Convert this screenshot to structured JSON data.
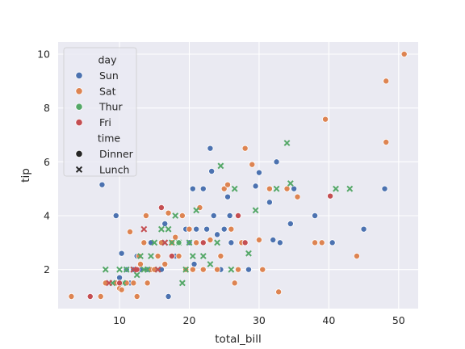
{
  "chart_data": {
    "type": "scatter",
    "xlabel": "total_bill",
    "ylabel": "tip",
    "xlim": [
      1.2,
      52.8
    ],
    "ylim": [
      0.55,
      10.45
    ],
    "xticks": [
      10,
      20,
      30,
      40,
      50
    ],
    "yticks": [
      2,
      4,
      6,
      8,
      10
    ],
    "grid": true,
    "legend_placement": "upper-left",
    "legend": {
      "hue_title": "day",
      "hue_entries": [
        {
          "name": "Sun",
          "color": "#4c72b0"
        },
        {
          "name": "Sat",
          "color": "#dd8452"
        },
        {
          "name": "Thur",
          "color": "#55a868"
        },
        {
          "name": "Fri",
          "color": "#c44e52"
        }
      ],
      "style_title": "time",
      "style_entries": [
        {
          "name": "Dinner",
          "marker": "circle"
        },
        {
          "name": "Lunch",
          "marker": "x"
        }
      ]
    },
    "series": [
      {
        "name": "Sun",
        "time": "Dinner",
        "color": "#4c72b0",
        "marker": "circle",
        "points": [
          [
            7.5,
            5.15
          ],
          [
            9.5,
            4.0
          ],
          [
            10.0,
            1.7
          ],
          [
            10.3,
            2.6
          ],
          [
            11.0,
            2.0
          ],
          [
            11.5,
            1.5
          ],
          [
            12.0,
            2.0
          ],
          [
            12.5,
            2.5
          ],
          [
            13.0,
            2.0
          ],
          [
            14.0,
            2.0
          ],
          [
            14.5,
            3.0
          ],
          [
            15.0,
            2.0
          ],
          [
            15.5,
            2.5
          ],
          [
            16.0,
            2.0
          ],
          [
            16.5,
            3.7
          ],
          [
            17.0,
            1.0
          ],
          [
            17.5,
            2.5
          ],
          [
            18.0,
            2.5
          ],
          [
            18.5,
            3.0
          ],
          [
            19.5,
            3.5
          ],
          [
            20.0,
            3.0
          ],
          [
            20.5,
            5.0
          ],
          [
            20.7,
            2.2
          ],
          [
            21.0,
            3.5
          ],
          [
            22.0,
            5.0
          ],
          [
            22.5,
            3.5
          ],
          [
            23.0,
            6.5
          ],
          [
            23.2,
            5.65
          ],
          [
            23.5,
            4.0
          ],
          [
            24.0,
            3.3
          ],
          [
            24.5,
            2.0
          ],
          [
            25.0,
            3.5
          ],
          [
            25.5,
            4.7
          ],
          [
            25.8,
            4.0
          ],
          [
            26.0,
            3.0
          ],
          [
            28.5,
            2.0
          ],
          [
            29.5,
            5.1
          ],
          [
            30.0,
            5.6
          ],
          [
            30.5,
            2.0
          ],
          [
            31.5,
            4.5
          ],
          [
            32.0,
            3.1
          ],
          [
            32.5,
            6.0
          ],
          [
            33.0,
            3.0
          ],
          [
            34.5,
            3.7
          ],
          [
            35.0,
            5.0
          ],
          [
            38.0,
            4.0
          ],
          [
            40.5,
            3.0
          ],
          [
            45.0,
            3.5
          ],
          [
            48.0,
            5.0
          ]
        ]
      },
      {
        "name": "Sat",
        "time": "Dinner",
        "color": "#dd8452",
        "marker": "circle",
        "points": [
          [
            3.1,
            1.0
          ],
          [
            7.3,
            1.0
          ],
          [
            8.0,
            1.5
          ],
          [
            9.5,
            1.5
          ],
          [
            10.0,
            1.3
          ],
          [
            10.3,
            1.25
          ],
          [
            11.0,
            1.5
          ],
          [
            11.5,
            3.4
          ],
          [
            12.0,
            1.5
          ],
          [
            12.5,
            1.0
          ],
          [
            12.8,
            2.5
          ],
          [
            13.0,
            2.2
          ],
          [
            13.5,
            3.0
          ],
          [
            13.8,
            4.0
          ],
          [
            14.0,
            1.5
          ],
          [
            14.5,
            2.0
          ],
          [
            15.0,
            2.0
          ],
          [
            15.5,
            2.5
          ],
          [
            16.0,
            3.0
          ],
          [
            16.5,
            2.2
          ],
          [
            17.0,
            4.1
          ],
          [
            17.5,
            3.0
          ],
          [
            18.0,
            3.2
          ],
          [
            18.5,
            2.5
          ],
          [
            19.0,
            4.0
          ],
          [
            19.5,
            2.0
          ],
          [
            20.0,
            3.5
          ],
          [
            20.5,
            2.0
          ],
          [
            21.0,
            3.0
          ],
          [
            21.5,
            4.3
          ],
          [
            22.0,
            2.0
          ],
          [
            23.0,
            3.1
          ],
          [
            24.0,
            2.0
          ],
          [
            24.5,
            2.5
          ],
          [
            25.0,
            5.0
          ],
          [
            25.5,
            5.15
          ],
          [
            26.0,
            3.5
          ],
          [
            26.5,
            1.5
          ],
          [
            27.0,
            2.0
          ],
          [
            27.5,
            3.0
          ],
          [
            28.0,
            6.5
          ],
          [
            29.0,
            5.9
          ],
          [
            30.0,
            3.1
          ],
          [
            30.5,
            2.0
          ],
          [
            31.5,
            5.0
          ],
          [
            32.8,
            1.17
          ],
          [
            34.0,
            5.0
          ],
          [
            35.5,
            4.7
          ],
          [
            38.0,
            3.0
          ],
          [
            39.0,
            3.0
          ],
          [
            39.5,
            7.58
          ],
          [
            44.0,
            2.5
          ],
          [
            48.2,
            6.73
          ],
          [
            48.2,
            9.0
          ],
          [
            50.8,
            10.0
          ]
        ]
      },
      {
        "name": "Thur",
        "time": "Lunch",
        "color": "#55a868",
        "marker": "x",
        "points": [
          [
            8.0,
            2.0
          ],
          [
            9.0,
            1.5
          ],
          [
            10.0,
            2.0
          ],
          [
            10.5,
            1.5
          ],
          [
            11.0,
            2.0
          ],
          [
            12.0,
            2.0
          ],
          [
            12.5,
            1.8
          ],
          [
            13.0,
            2.5
          ],
          [
            13.5,
            2.0
          ],
          [
            14.0,
            2.0
          ],
          [
            14.5,
            2.5
          ],
          [
            15.0,
            3.0
          ],
          [
            15.5,
            2.0
          ],
          [
            16.0,
            3.5
          ],
          [
            16.5,
            3.0
          ],
          [
            17.0,
            3.5
          ],
          [
            17.5,
            3.0
          ],
          [
            18.0,
            4.0
          ],
          [
            18.5,
            3.0
          ],
          [
            19.0,
            1.5
          ],
          [
            19.5,
            2.0
          ],
          [
            20.0,
            3.0
          ],
          [
            20.5,
            2.5
          ],
          [
            21.0,
            4.2
          ],
          [
            22.0,
            2.5
          ],
          [
            23.0,
            2.2
          ],
          [
            24.0,
            3.0
          ],
          [
            24.5,
            5.85
          ],
          [
            26.0,
            2.0
          ],
          [
            26.5,
            5.0
          ],
          [
            28.5,
            2.6
          ],
          [
            29.5,
            4.2
          ],
          [
            32.5,
            5.0
          ],
          [
            34.0,
            6.7
          ],
          [
            34.5,
            5.2
          ],
          [
            41.0,
            5.0
          ],
          [
            43.0,
            5.0
          ]
        ]
      },
      {
        "name": "Thur",
        "time": "Dinner",
        "color": "#55a868",
        "marker": "circle",
        "points": [
          [
            18.5,
            3.0
          ]
        ]
      },
      {
        "name": "Fri",
        "time": "Dinner",
        "color": "#c44e52",
        "marker": "circle",
        "points": [
          [
            5.8,
            1.0
          ],
          [
            10.0,
            1.5
          ],
          [
            12.5,
            2.0
          ],
          [
            16.0,
            4.3
          ],
          [
            17.5,
            2.5
          ],
          [
            22.0,
            3.0
          ],
          [
            27.0,
            4.0
          ],
          [
            28.0,
            3.0
          ],
          [
            40.2,
            4.73
          ]
        ]
      },
      {
        "name": "Fri",
        "time": "Lunch",
        "color": "#c44e52",
        "marker": "x",
        "points": [
          [
            8.5,
            1.5
          ],
          [
            12.0,
            2.0
          ],
          [
            13.5,
            3.5
          ],
          [
            15.5,
            2.0
          ],
          [
            16.5,
            3.0
          ]
        ]
      }
    ]
  }
}
